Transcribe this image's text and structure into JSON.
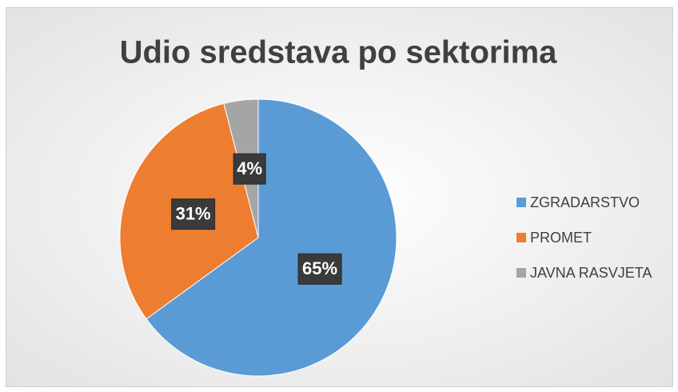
{
  "chart_data": {
    "type": "pie",
    "title": "Udio sredstava po sektorima",
    "categories": [
      "ZGRADARSTVO",
      "PROMET",
      "JAVNA RASVJETA"
    ],
    "values": [
      65,
      31,
      4
    ],
    "value_labels": [
      "65%",
      "31%",
      "4%"
    ],
    "colors": [
      "#5b9bd5",
      "#ed7d31",
      "#a5a5a5"
    ],
    "legend": "right"
  }
}
